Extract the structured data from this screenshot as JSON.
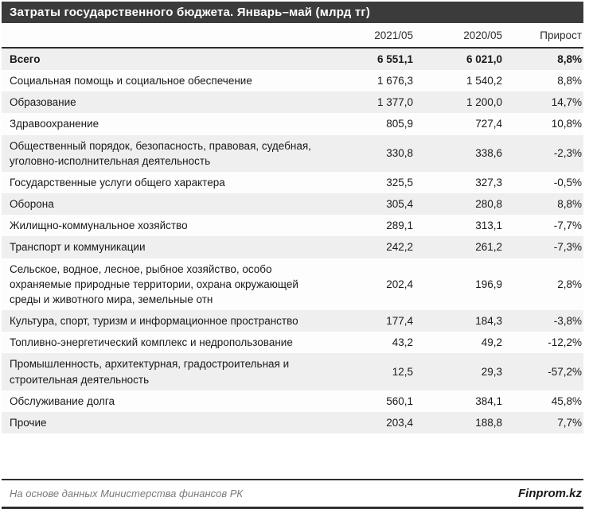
{
  "title": "Затраты государственного бюджета. Январь–май (млрд тг)",
  "header": {
    "col_2021": "2021/05",
    "col_2020": "2020/05",
    "col_growth": "Прирост"
  },
  "footer": {
    "source": "На основе данных Министерства финансов РК",
    "brand": "Finprom.kz"
  },
  "colors": {
    "title_bar_bg": "#3b3b3b",
    "title_text": "#ffffff",
    "row_alt_bg": "#efefef",
    "row_plain_bg": "#fdfdfd",
    "border_dark": "#2e2e2e",
    "source_text": "#7a7a7a"
  },
  "chart_data": {
    "type": "table",
    "title": "Затраты государственного бюджета. Январь–май (млрд тг)",
    "columns": [
      "2021/05",
      "2020/05",
      "Прирост"
    ],
    "rows": [
      {
        "label": "Всего",
        "v2021": "6 551,1",
        "v2020": "6 021,0",
        "growth": "8,8%",
        "bold": true
      },
      {
        "label": "Социальная помощь и социальное обеспечение",
        "v2021": "1 676,3",
        "v2020": "1 540,2",
        "growth": "8,8%",
        "bold": false
      },
      {
        "label": "Образование",
        "v2021": "1 377,0",
        "v2020": "1 200,0",
        "growth": "14,7%",
        "bold": false
      },
      {
        "label": "Здравоохранение",
        "v2021": "805,9",
        "v2020": "727,4",
        "growth": "10,8%",
        "bold": false
      },
      {
        "label": "Общественный порядок, безопасность, правовая, судебная, уголовно-исполнительная деятельность",
        "v2021": "330,8",
        "v2020": "338,6",
        "growth": "-2,3%",
        "bold": false
      },
      {
        "label": "Государственные услуги общего характера",
        "v2021": "325,5",
        "v2020": "327,3",
        "growth": "-0,5%",
        "bold": false
      },
      {
        "label": "Оборона",
        "v2021": "305,4",
        "v2020": "280,8",
        "growth": "8,8%",
        "bold": false
      },
      {
        "label": "Жилищно-коммунальное хозяйство",
        "v2021": "289,1",
        "v2020": "313,1",
        "growth": "-7,7%",
        "bold": false
      },
      {
        "label": "Транспорт и коммуникации",
        "v2021": "242,2",
        "v2020": "261,2",
        "growth": "-7,3%",
        "bold": false
      },
      {
        "label": "Сельское, водное, лесное, рыбное хозяйство, особо охраняемые природные территории, охрана окружающей среды и животного мира, земельные отн",
        "v2021": "202,4",
        "v2020": "196,9",
        "growth": "2,8%",
        "bold": false
      },
      {
        "label": "Культура, спорт, туризм и информационное пространство",
        "v2021": "177,4",
        "v2020": "184,3",
        "growth": "-3,8%",
        "bold": false
      },
      {
        "label": "Топливно-энергетический комплекс и недропользование",
        "v2021": "43,2",
        "v2020": "49,2",
        "growth": "-12,2%",
        "bold": false
      },
      {
        "label": "Промышленность, архитектурная, градостроительная и строительная деятельность",
        "v2021": "12,5",
        "v2020": "29,3",
        "growth": "-57,2%",
        "bold": false
      },
      {
        "label": "Обслуживание долга",
        "v2021": "560,1",
        "v2020": "384,1",
        "growth": "45,8%",
        "bold": false
      },
      {
        "label": "Прочие",
        "v2021": "203,4",
        "v2020": "188,8",
        "growth": "7,7%",
        "bold": false
      }
    ]
  }
}
